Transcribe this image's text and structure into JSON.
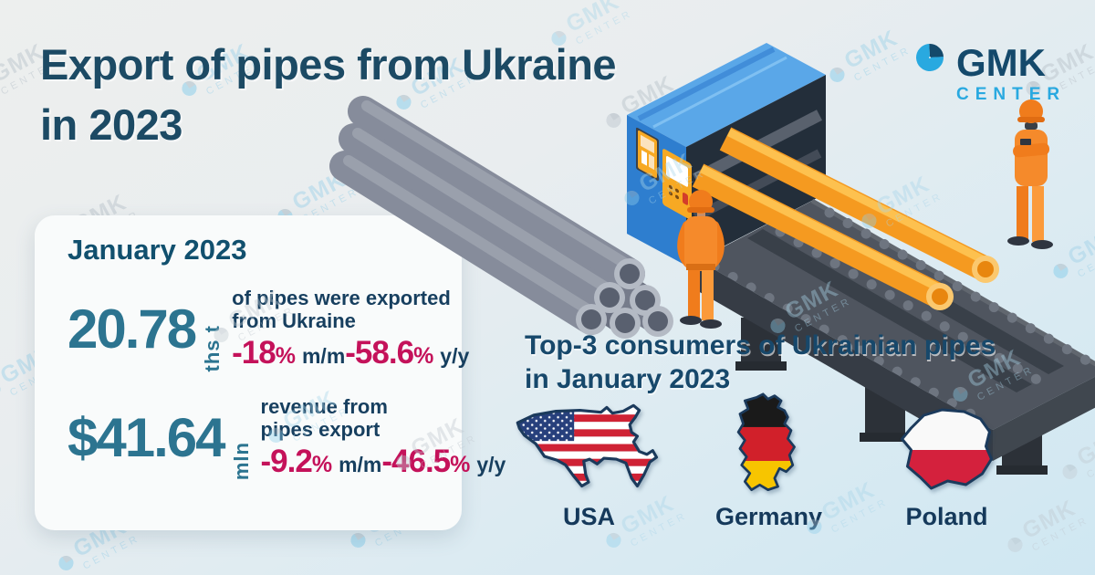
{
  "title": {
    "line1": "Export of pipes from Ukraine",
    "line2": "in 2023"
  },
  "logo": {
    "name": "GMK",
    "sub": "CENTER"
  },
  "watermark": {
    "name": "GMK",
    "sub": "CENTER"
  },
  "card": {
    "header": "January 2023",
    "stats": [
      {
        "value": "20.78",
        "unit": "ths t",
        "desc": [
          "of pipes were exported",
          "from Ukraine"
        ],
        "mm": {
          "value": "-18",
          "percent": "%",
          "label": "m/m"
        },
        "yy": {
          "value": "-58.6",
          "percent": "%",
          "label": "y/y"
        }
      },
      {
        "value": "$41.64",
        "unit": "mln",
        "desc": [
          "revenue from",
          "pipes export"
        ],
        "mm": {
          "value": "-9.2",
          "percent": "%",
          "label": "m/m"
        },
        "yy": {
          "value": "-46.5",
          "percent": "%",
          "label": "y/y"
        }
      }
    ]
  },
  "consumers": {
    "heading_line1": "Top-3 consumers of Ukrainian pipes",
    "heading_line2": "in January 2023",
    "countries": [
      {
        "name": "USA"
      },
      {
        "name": "Germany"
      },
      {
        "name": "Poland"
      }
    ]
  },
  "colors": {
    "title_navy": "#1c4a64",
    "teal": "#2c7490",
    "crimson": "#c4125a",
    "cyan": "#29a9e0",
    "logo_navy": "#14496b",
    "machine_blue": "#2e7ecf",
    "pipe_orange": "#f59a20",
    "conveyor_grey": "#4f555f"
  }
}
